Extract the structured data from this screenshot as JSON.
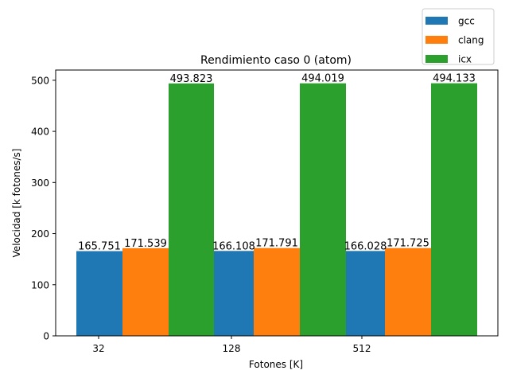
{
  "chart_data": {
    "type": "bar",
    "title": "Rendimiento caso 0 (atom)",
    "xlabel": "Fotones [K]",
    "ylabel": "Velocidad [k fotones/s]",
    "categories": [
      "32",
      "128",
      "512"
    ],
    "ylim": [
      0,
      520
    ],
    "yticks": [
      0,
      100,
      200,
      300,
      400,
      500
    ],
    "grid": false,
    "legend_position": "above-top-right",
    "series": [
      {
        "name": "gcc",
        "color": "#1f77b4",
        "values": [
          165.751,
          166.108,
          166.028
        ],
        "labels": [
          "165.751",
          "166.108",
          "166.028"
        ]
      },
      {
        "name": "clang",
        "color": "#ff7f0e",
        "values": [
          171.539,
          171.791,
          171.725
        ],
        "labels": [
          "171.539",
          "171.791",
          "171.725"
        ]
      },
      {
        "name": "icx",
        "color": "#2ca02c",
        "values": [
          493.823,
          494.019,
          494.133
        ],
        "labels": [
          "493.823",
          "494.019",
          "494.133"
        ]
      }
    ]
  }
}
